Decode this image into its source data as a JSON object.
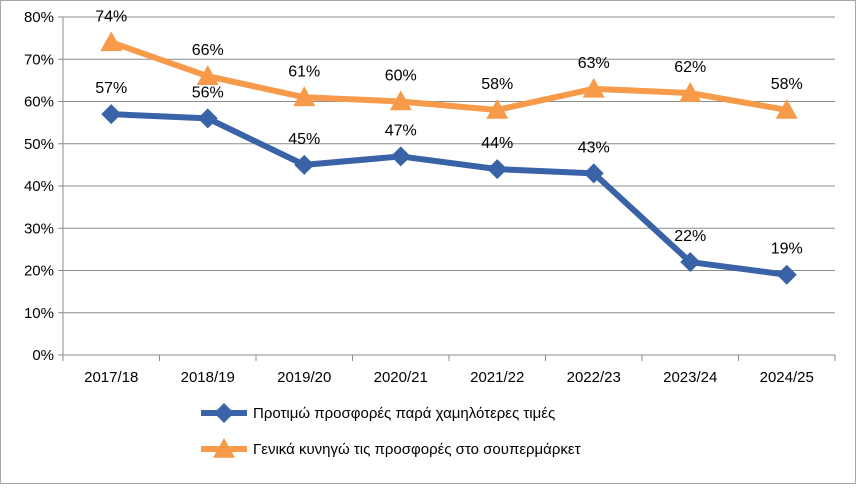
{
  "colors": {
    "series1": "#3a62a7",
    "series2": "#f79a4a",
    "grid": "#8c8c8c",
    "axis": "#8c8c8c"
  },
  "chart_data": {
    "type": "line",
    "categories": [
      "2017/18",
      "2018/19",
      "2019/20",
      "2020/21",
      "2021/22",
      "2022/23",
      "2023/24",
      "2024/25"
    ],
    "ylim": [
      0,
      80
    ],
    "yticks": [
      "0%",
      "10%",
      "20%",
      "30%",
      "40%",
      "50%",
      "60%",
      "70%",
      "80%"
    ],
    "grid": true,
    "legend_position": "bottom",
    "series": [
      {
        "name": "Προτιμώ προσφορές παρά χαμηλότερες τιμές",
        "marker": "diamond-icon",
        "values": [
          57,
          56,
          45,
          47,
          44,
          43,
          22,
          19
        ],
        "labels": [
          "57%",
          "56%",
          "45%",
          "47%",
          "44%",
          "43%",
          "22%",
          "19%"
        ]
      },
      {
        "name": "Γενικά κυνηγώ τις προσφορές στο σουπερμάρκετ",
        "marker": "triangle-icon",
        "values": [
          74,
          66,
          61,
          60,
          58,
          63,
          62,
          58
        ],
        "labels": [
          "74%",
          "66%",
          "61%",
          "60%",
          "58%",
          "63%",
          "62%",
          "58%"
        ]
      }
    ]
  }
}
